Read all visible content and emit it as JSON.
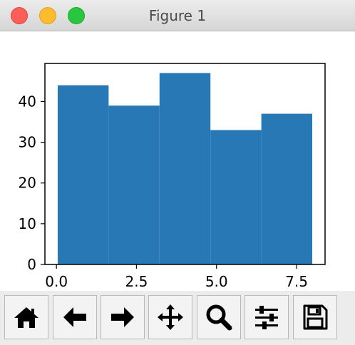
{
  "window": {
    "title": "Figure 1"
  },
  "toolbar": {
    "buttons": [
      {
        "icon": "home-icon"
      },
      {
        "icon": "back-arrow-icon"
      },
      {
        "icon": "forward-arrow-icon"
      },
      {
        "icon": "pan-move-icon"
      },
      {
        "icon": "zoom-magnifier-icon"
      },
      {
        "icon": "configure-subplots-icon"
      },
      {
        "icon": "save-floppy-icon"
      }
    ]
  },
  "chart_data": {
    "type": "bar",
    "style": "histogram",
    "bin_edges": [
      0.04,
      1.63,
      3.22,
      4.81,
      6.4,
      7.99
    ],
    "values": [
      44,
      39,
      47,
      33,
      37
    ],
    "title": "",
    "xlabel": "",
    "ylabel": "",
    "xlim": [
      -0.36,
      8.39
    ],
    "ylim": [
      0,
      49.35
    ],
    "xticks": [
      "0.0",
      "2.5",
      "5.0",
      "7.5"
    ],
    "yticks": [
      "0",
      "10",
      "20",
      "30",
      "40"
    ],
    "grid": false,
    "legend": false,
    "color": "#2878b5"
  }
}
